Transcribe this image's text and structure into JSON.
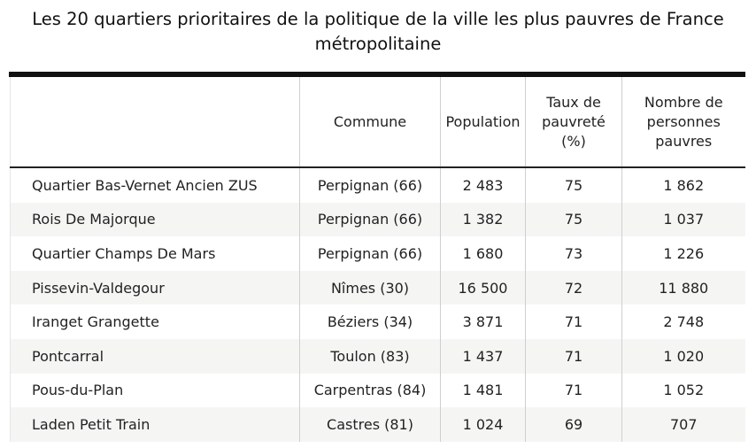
{
  "title": "Les 20 quartiers prioritaires de la politique de la ville les plus pauvres de France métropolitaine",
  "columns": [
    "",
    "Commune",
    "Population",
    "Taux de pauvreté (%)",
    "Nombre de personnes pauvres"
  ],
  "rows": [
    [
      "Quartier Bas-Vernet Ancien ZUS",
      "Perpignan (66)",
      "2 483",
      "75",
      "1 862"
    ],
    [
      "Rois De Majorque",
      "Perpignan (66)",
      "1 382",
      "75",
      "1 037"
    ],
    [
      "Quartier Champs De Mars",
      "Perpignan (66)",
      "1 680",
      "73",
      "1 226"
    ],
    [
      "Pissevin-Valdegour",
      "Nîmes (30)",
      "16 500",
      "72",
      "11 880"
    ],
    [
      "Iranget Grangette",
      "Béziers (34)",
      "3 871",
      "71",
      "2 748"
    ],
    [
      "Pontcarral",
      "Toulon (83)",
      "1 437",
      "71",
      "1 020"
    ],
    [
      "Pous-du-Plan",
      "Carpentras (84)",
      "1 481",
      "71",
      "1 052"
    ],
    [
      "Laden Petit Train",
      "Castres (81)",
      "1 024",
      "69",
      "707"
    ]
  ]
}
